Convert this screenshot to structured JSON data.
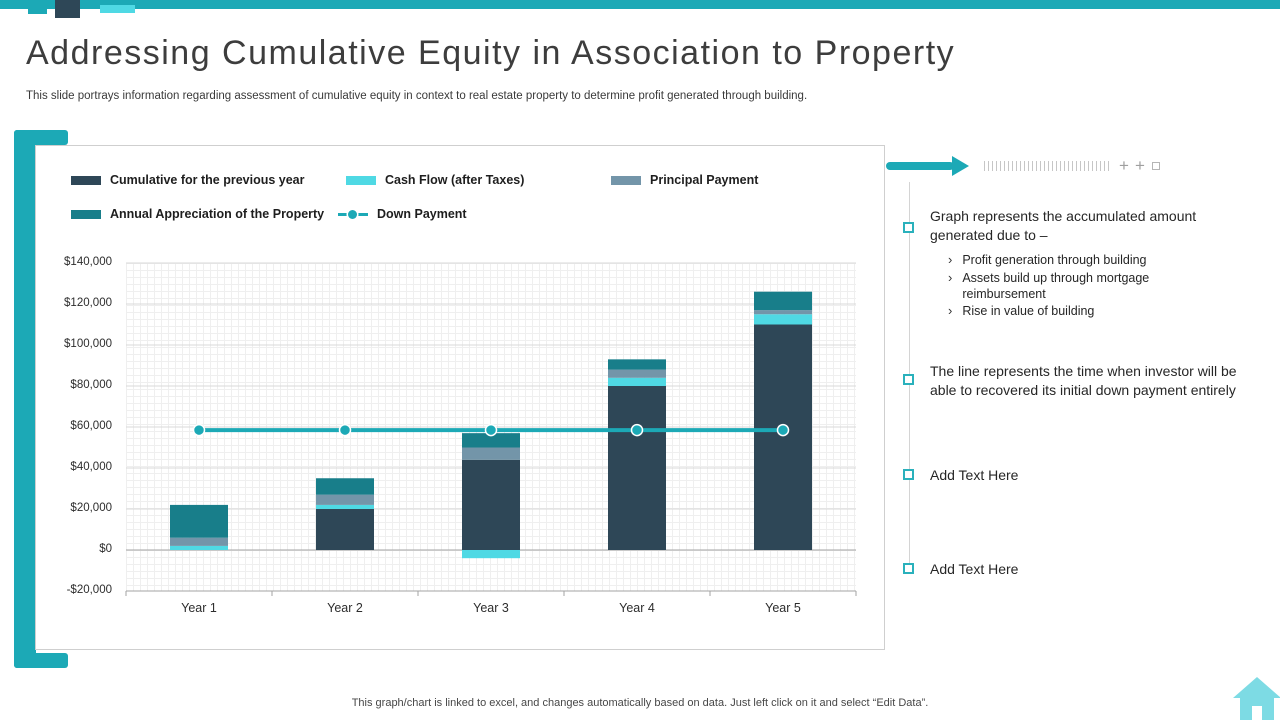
{
  "slide": {
    "title": "Addressing Cumulative Equity in Association to Property",
    "subtitle": "This slide portrays information regarding assessment of cumulative equity in context to real estate property to determine profit generated through building.",
    "footer": "This graph/chart is linked to excel, and changes automatically based on data. Just left click on it and select “Edit Data”."
  },
  "colors": {
    "accent_teal": "#1CA9B6",
    "navy": "#2E4757",
    "cyan": "#4FD9E4",
    "gray_blue": "#7395A9",
    "dark_teal": "#187E8A"
  },
  "icons": {
    "chevron_bullet": "›",
    "plus": "+"
  },
  "chart_data": {
    "type": "bar",
    "stacked": true,
    "title": "",
    "xlabel": "",
    "ylabel": "",
    "categories": [
      "Year 1",
      "Year 2",
      "Year 3",
      "Year 4",
      "Year 5"
    ],
    "series": [
      {
        "name": "Cumulative for the previous year",
        "color": "#2E4757",
        "values": [
          0,
          20000,
          44000,
          80000,
          110000
        ]
      },
      {
        "name": "Cash Flow (after Taxes)",
        "color": "#4FD9E4",
        "values": [
          2000,
          2000,
          -4000,
          4000,
          5000
        ]
      },
      {
        "name": "Principal Payment",
        "color": "#7395A9",
        "values": [
          4000,
          5000,
          6000,
          4000,
          2000
        ]
      },
      {
        "name": "Annual Appreciation of the Property",
        "color": "#187E8A",
        "values": [
          16000,
          8000,
          7000,
          5000,
          9000
        ]
      }
    ],
    "line_series": {
      "name": "Down Payment",
      "color": "#1CA9B6",
      "values": [
        58500,
        58500,
        58500,
        58500,
        58500
      ]
    },
    "ylim": [
      -20000,
      140000
    ],
    "ytick_step": 20000,
    "ytick_labels_top_to_bottom": [
      "$140,000",
      "$120,000",
      "$100,000",
      "$80,000",
      "$60,000",
      "$40,000",
      "$20,000",
      "$0",
      "-$20,000"
    ],
    "legend_position": "top-left",
    "grid": true
  },
  "right_panel": {
    "items": [
      {
        "text": "Graph represents the accumulated amount generated due to –",
        "bullets": [
          "Profit generation through building",
          "Assets build up through mortgage reimbursement",
          "Rise in value of building"
        ]
      },
      {
        "text": "The line represents the time when investor will be able to recovered its initial down payment entirely",
        "bullets": []
      },
      {
        "text": "Add Text Here",
        "bullets": []
      },
      {
        "text": "Add Text Here",
        "bullets": []
      }
    ]
  }
}
